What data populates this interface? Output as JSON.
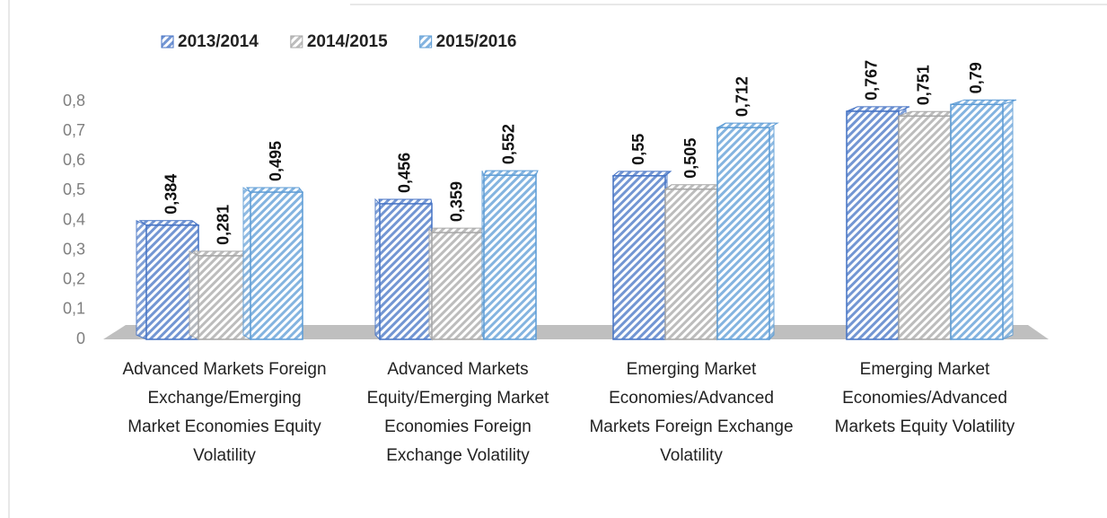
{
  "chart_data": {
    "type": "bar",
    "categories": [
      "Advanced Markets Foreign Exchange/Emerging Market Economies Equity Volatility",
      "Advanced Markets Equity/Emerging Market Economies Foreign Exchange Volatility",
      "Emerging Market Economies/Advanced Markets Foreign Exchange Volatility",
      "Emerging Market Economies/Advanced Markets Equity Volatility"
    ],
    "series": [
      {
        "name": "2013/2014",
        "color": "#4472c4",
        "values": [
          0.384,
          0.456,
          0.55,
          0.767
        ],
        "value_labels": [
          "0,384",
          "0,456",
          "0,55",
          "0,767"
        ]
      },
      {
        "name": "2014/2015",
        "color": "#a6a6a6",
        "values": [
          0.281,
          0.359,
          0.505,
          0.751
        ],
        "value_labels": [
          "0,281",
          "0,359",
          "0,505",
          "0,751"
        ]
      },
      {
        "name": "2015/2016",
        "color": "#5b9bd5",
        "values": [
          0.495,
          0.552,
          0.712,
          0.79
        ],
        "value_labels": [
          "0,495",
          "0,552",
          "0,712",
          "0,79"
        ]
      }
    ],
    "ylim": [
      0,
      0.8
    ],
    "yticks": [
      0,
      {
        "value": 0.1,
        "label": "0,1"
      },
      {
        "value": 0.2,
        "label": "0,2"
      },
      {
        "value": 0.3,
        "label": "0,3"
      },
      {
        "value": 0.4,
        "label": "0,4"
      },
      {
        "value": 0.5,
        "label": "0,5"
      },
      {
        "value": 0.6,
        "label": "0,6"
      },
      {
        "value": 0.7,
        "label": "0,7"
      },
      {
        "value": 0.8,
        "label": "0,8"
      }
    ],
    "legend": "top-left",
    "grid": false
  }
}
